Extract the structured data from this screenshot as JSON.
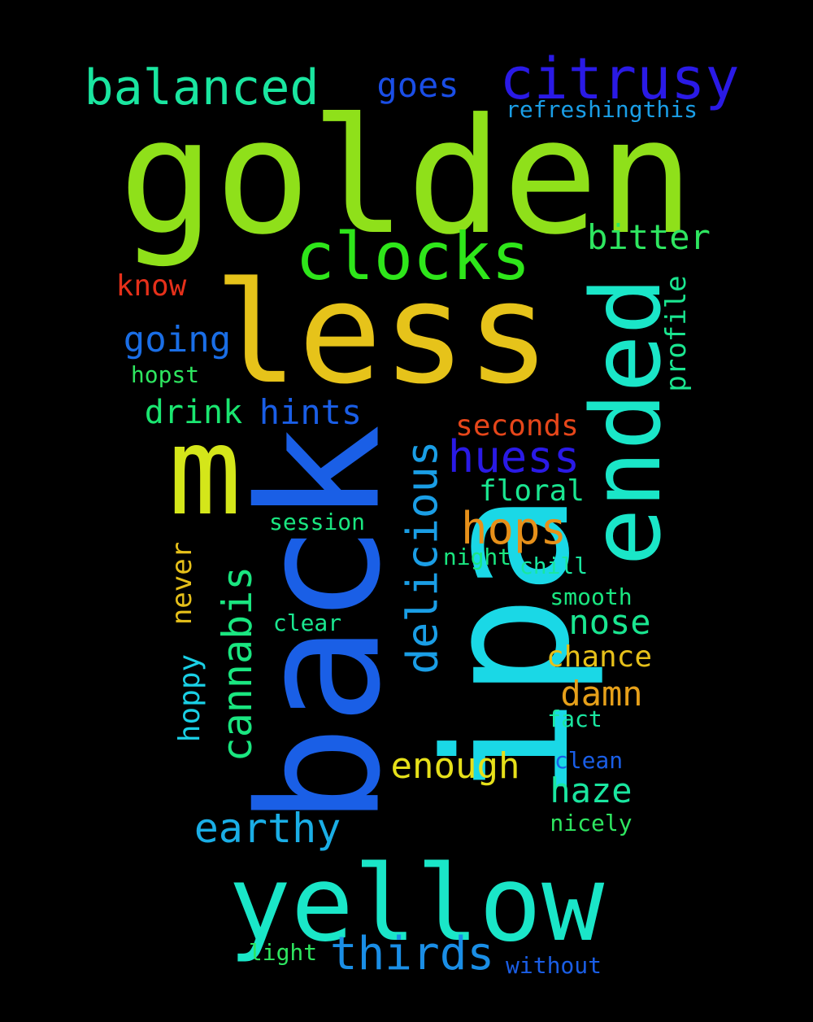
{
  "words": [
    {
      "text": "golden",
      "color": "#8fe01a",
      "rotated": false
    },
    {
      "text": "less",
      "color": "#e6c31a",
      "rotated": false
    },
    {
      "text": "back",
      "color": "#1a5fe6",
      "rotated": true
    },
    {
      "text": "ipa",
      "color": "#1ad8e6",
      "rotated": true
    },
    {
      "text": "m",
      "color": "#d4e61a",
      "rotated": false
    },
    {
      "text": "yellow",
      "color": "#1ae6c8",
      "rotated": false
    },
    {
      "text": "ended",
      "color": "#1ae6c8",
      "rotated": true
    },
    {
      "text": "clocks",
      "color": "#2ee61a",
      "rotated": false
    },
    {
      "text": "citrusy",
      "color": "#2a1ae6",
      "rotated": false
    },
    {
      "text": "balanced",
      "color": "#1ae6a0",
      "rotated": false
    },
    {
      "text": "delicious",
      "color": "#1a9ee6",
      "rotated": true
    },
    {
      "text": "huess",
      "color": "#2a1ae6",
      "rotated": false
    },
    {
      "text": "cannabis",
      "color": "#1ae680",
      "rotated": true
    },
    {
      "text": "thirds",
      "color": "#1a8ee6",
      "rotated": false
    },
    {
      "text": "hops",
      "color": "#e6901a",
      "rotated": false
    },
    {
      "text": "earthy",
      "color": "#1aaee6",
      "rotated": false
    },
    {
      "text": "goes",
      "color": "#1a4ee6",
      "rotated": false
    },
    {
      "text": "bitter",
      "color": "#2ee660",
      "rotated": false
    },
    {
      "text": "going",
      "color": "#1a6ee6",
      "rotated": false
    },
    {
      "text": "hints",
      "color": "#1a5ee6",
      "rotated": false
    },
    {
      "text": "drink",
      "color": "#1ae670",
      "rotated": false
    },
    {
      "text": "enough",
      "color": "#e6e01a",
      "rotated": false
    },
    {
      "text": "haze",
      "color": "#1ae6a0",
      "rotated": false
    },
    {
      "text": "nose",
      "color": "#1ae690",
      "rotated": false
    },
    {
      "text": "damn",
      "color": "#e6a01a",
      "rotated": false
    },
    {
      "text": "chance",
      "color": "#e6c01a",
      "rotated": false
    },
    {
      "text": "floral",
      "color": "#1ae690",
      "rotated": false
    },
    {
      "text": "seconds",
      "color": "#e6461a",
      "rotated": false
    },
    {
      "text": "hoppy",
      "color": "#1ad0e6",
      "rotated": true
    },
    {
      "text": "never",
      "color": "#e6c01a",
      "rotated": true
    },
    {
      "text": "profile",
      "color": "#1ae690",
      "rotated": true
    },
    {
      "text": "know",
      "color": "#e6301a",
      "rotated": false
    },
    {
      "text": "hopst",
      "color": "#2ee660",
      "rotated": false
    },
    {
      "text": "refreshingthis",
      "color": "#1a9ee6",
      "rotated": false
    },
    {
      "text": "session",
      "color": "#1ae680",
      "rotated": false
    },
    {
      "text": "night",
      "color": "#1ae680",
      "rotated": false
    },
    {
      "text": "chill",
      "color": "#1ae6a0",
      "rotated": false
    },
    {
      "text": "smooth",
      "color": "#1ae680",
      "rotated": false
    },
    {
      "text": "clear",
      "color": "#1ae690",
      "rotated": false
    },
    {
      "text": "fact",
      "color": "#1ae6a0",
      "rotated": false
    },
    {
      "text": "clean",
      "color": "#1a5ee6",
      "rotated": false
    },
    {
      "text": "nicely",
      "color": "#2ee660",
      "rotated": false
    },
    {
      "text": "light",
      "color": "#2ee660",
      "rotated": false
    },
    {
      "text": "without",
      "color": "#1a5ee6",
      "rotated": false
    }
  ]
}
